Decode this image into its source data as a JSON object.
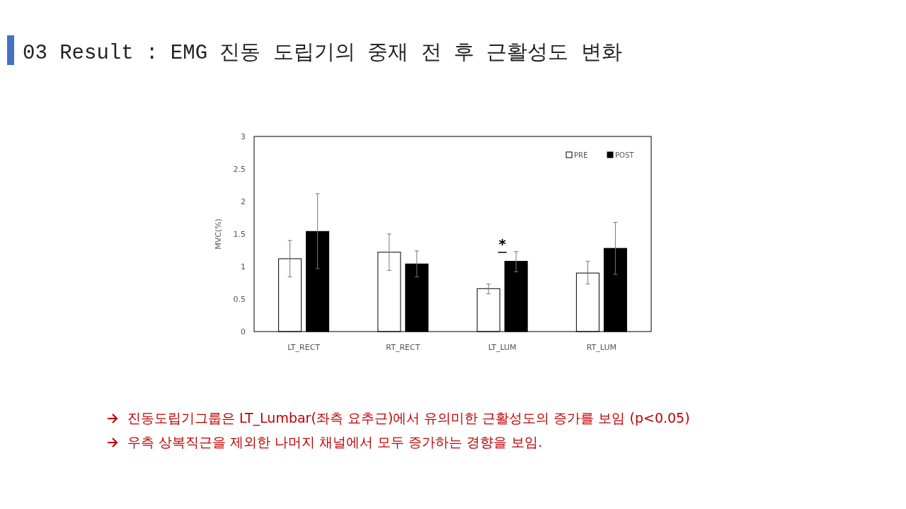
{
  "chart_data": {
    "type": "bar",
    "title": "03 Result : EMG 진동 도립기의 중재 전 후 근활성도 변화",
    "ylabel": "MVC(%)",
    "categories": [
      "LT_RECT",
      "RT_RECT",
      "LT_LUM",
      "RT_LUM"
    ],
    "series": [
      {
        "name": "PRE",
        "color": "#ffffff",
        "values": [
          1.12,
          1.22,
          0.66,
          0.9
        ],
        "errors": [
          [
            0.84,
            1.4
          ],
          [
            0.94,
            1.5
          ],
          [
            0.58,
            0.73
          ],
          [
            0.73,
            1.08
          ]
        ]
      },
      {
        "name": "POST",
        "color": "#000000",
        "values": [
          1.54,
          1.04,
          1.08,
          1.28
        ],
        "errors": [
          [
            0.97,
            2.12
          ],
          [
            0.84,
            1.24
          ],
          [
            0.92,
            1.23
          ],
          [
            0.88,
            1.68
          ]
        ]
      }
    ],
    "ylim": [
      0,
      3
    ],
    "yticks": [
      0,
      0.5,
      1,
      1.5,
      2,
      2.5,
      3
    ],
    "legend": "top right",
    "annotations": [
      "*",
      "진동도립기그룹은 LT_Lumbar(좌측 요추근)에서 유의미한 근활성도의 증가를 보임 (p<0.05)",
      "우측 상복직근을 제외한 나머지 채널에서 모두 증가하는 경향을 보임."
    ]
  }
}
